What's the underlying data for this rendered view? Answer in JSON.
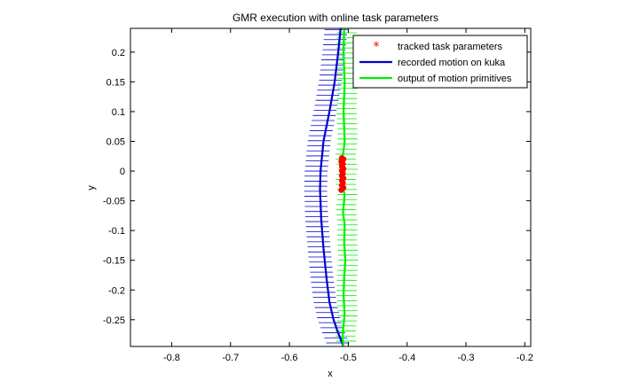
{
  "chart_data": {
    "type": "line",
    "title": "GMR execution with online task parameters",
    "xlabel": "x",
    "ylabel": "y",
    "xlim": [
      -0.87,
      -0.19
    ],
    "ylim": [
      -0.295,
      0.24
    ],
    "xticks": [
      -0.8,
      -0.7,
      -0.6,
      -0.5,
      -0.4,
      -0.3,
      -0.2
    ],
    "xtick_labels": [
      "-0.8",
      "-0.7",
      "-0.6",
      "-0.5",
      "-0.4",
      "-0.3",
      "-0.2"
    ],
    "yticks": [
      0.2,
      0.15,
      0.1,
      0.05,
      0,
      -0.05,
      -0.1,
      -0.15,
      -0.2,
      -0.25
    ],
    "ytick_labels": [
      "0.2",
      "0.15",
      "0.1",
      "0.05",
      "0",
      "-0.05",
      "-0.1",
      "-0.15",
      "-0.2",
      "-0.25"
    ],
    "grid": false,
    "legend_position": "top-right",
    "series": [
      {
        "name": "tracked task parameters",
        "kind": "marker",
        "color": "#ff0000",
        "points": [
          [
            -0.511,
            0.022
          ],
          [
            -0.508,
            0.02
          ],
          [
            -0.512,
            0.016
          ],
          [
            -0.509,
            0.012
          ],
          [
            -0.511,
            0.008
          ],
          [
            -0.508,
            0.004
          ],
          [
            -0.511,
            0.0
          ],
          [
            -0.509,
            -0.004
          ],
          [
            -0.511,
            -0.008
          ],
          [
            -0.508,
            -0.012
          ],
          [
            -0.511,
            -0.016
          ],
          [
            -0.509,
            -0.02
          ],
          [
            -0.511,
            -0.024
          ],
          [
            -0.508,
            -0.028
          ],
          [
            -0.512,
            -0.032
          ]
        ]
      },
      {
        "name": "recorded motion on kuka",
        "kind": "line",
        "color": "#0000cc",
        "points": [
          [
            -0.513,
            0.24
          ],
          [
            -0.517,
            0.2
          ],
          [
            -0.523,
            0.15
          ],
          [
            -0.532,
            0.1
          ],
          [
            -0.542,
            0.05
          ],
          [
            -0.547,
            0.0
          ],
          [
            -0.548,
            -0.03
          ],
          [
            -0.546,
            -0.08
          ],
          [
            -0.542,
            -0.13
          ],
          [
            -0.537,
            -0.18
          ],
          [
            -0.532,
            -0.22
          ],
          [
            -0.525,
            -0.25
          ],
          [
            -0.518,
            -0.27
          ],
          [
            -0.512,
            -0.285
          ],
          [
            -0.508,
            -0.295
          ]
        ]
      },
      {
        "name": "output of motion primitives",
        "kind": "line",
        "color": "#00ee00",
        "points": [
          [
            -0.507,
            0.24
          ],
          [
            -0.508,
            0.2
          ],
          [
            -0.506,
            0.15
          ],
          [
            -0.508,
            0.1
          ],
          [
            -0.506,
            0.05
          ],
          [
            -0.51,
            0.02
          ],
          [
            -0.506,
            0.0
          ],
          [
            -0.51,
            -0.02
          ],
          [
            -0.506,
            -0.04
          ],
          [
            -0.509,
            -0.07
          ],
          [
            -0.506,
            -0.09
          ],
          [
            -0.507,
            -0.12
          ],
          [
            -0.505,
            -0.15
          ],
          [
            -0.507,
            -0.18
          ],
          [
            -0.508,
            -0.21
          ],
          [
            -0.506,
            -0.24
          ],
          [
            -0.508,
            -0.26
          ],
          [
            -0.51,
            -0.28
          ],
          [
            -0.508,
            -0.295
          ]
        ]
      }
    ]
  }
}
